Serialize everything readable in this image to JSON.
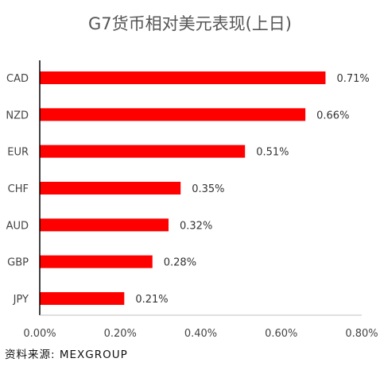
{
  "chart_data": {
    "type": "bar",
    "orientation": "horizontal",
    "title": "G7货币相对美元表现(上日)",
    "categories": [
      "CAD",
      "NZD",
      "EUR",
      "CHF",
      "AUD",
      "GBP",
      "JPY"
    ],
    "values": [
      0.71,
      0.66,
      0.51,
      0.35,
      0.32,
      0.28,
      0.21
    ],
    "data_labels": [
      "0.71%",
      "0.66%",
      "0.51%",
      "0.35%",
      "0.32%",
      "0.28%",
      "0.21%"
    ],
    "xlim": [
      0,
      0.8
    ],
    "x_ticks": [
      0,
      0.2,
      0.4,
      0.6,
      0.8
    ],
    "x_tick_labels": [
      "0.00%",
      "0.20%",
      "0.40%",
      "0.60%",
      "0.80%"
    ],
    "xlabel": "",
    "ylabel": "",
    "grid": false,
    "legend": "none",
    "bar_color": "#ff0000"
  },
  "source_note": "资料来源: MEXGROUP"
}
